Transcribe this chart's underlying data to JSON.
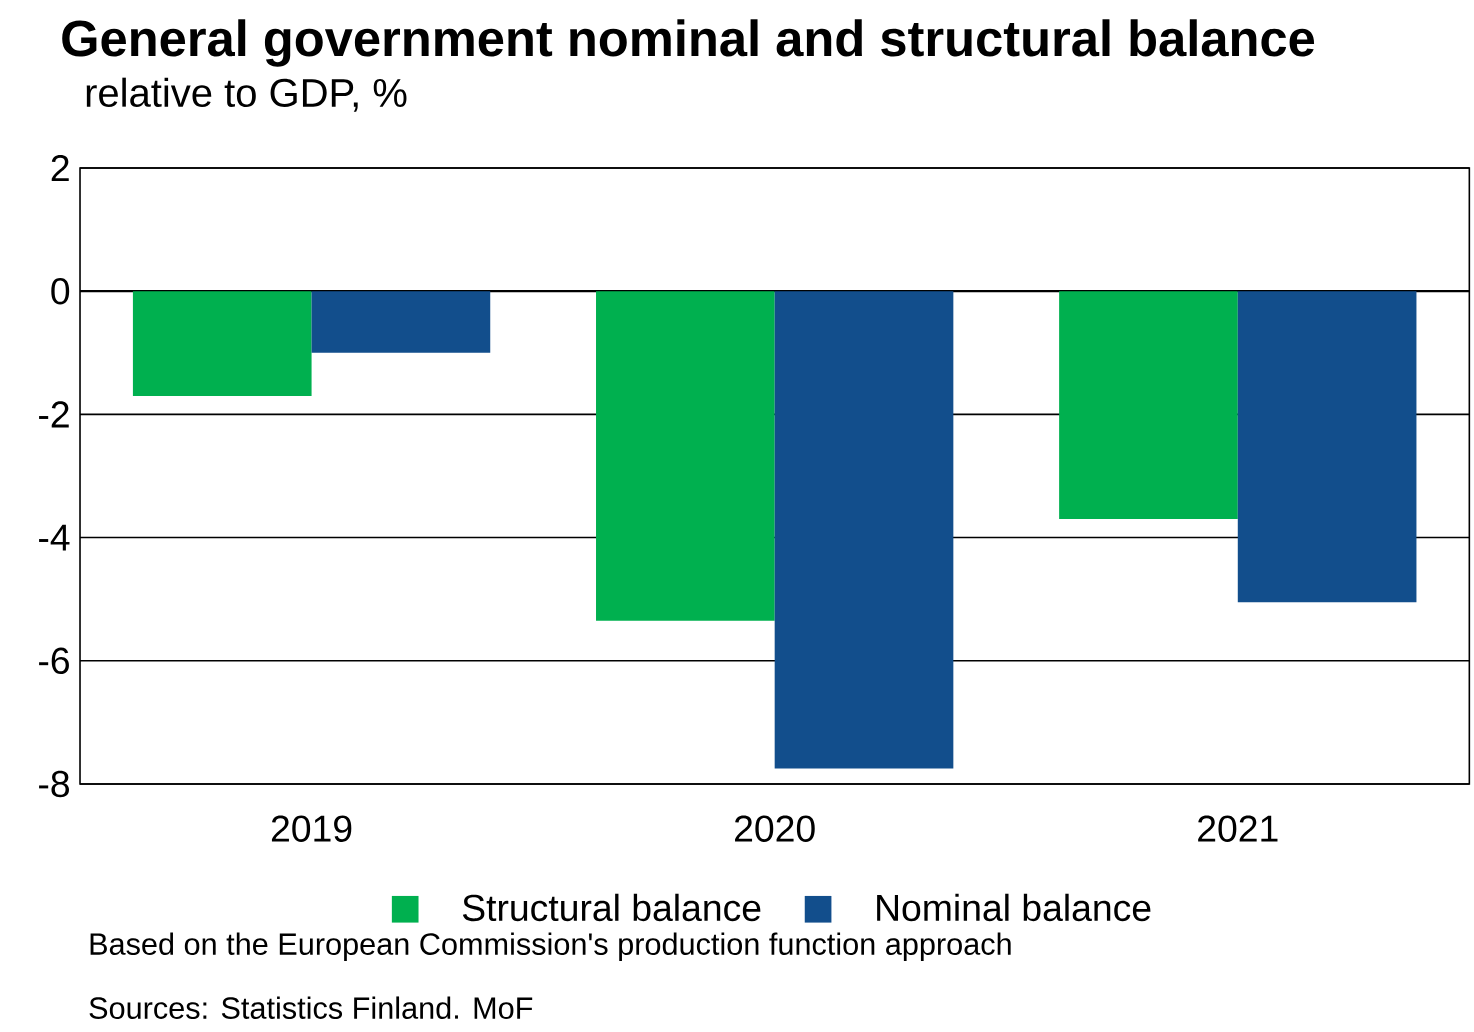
{
  "chart_data": {
    "type": "bar",
    "title": "General government nominal and structural balance",
    "subtitle": "relative to GDP, %",
    "categories": [
      "2019",
      "2020",
      "2021"
    ],
    "series": [
      {
        "name": "Structural balance",
        "color": "#00b04f",
        "values": [
          -1.7,
          -5.35,
          -3.7
        ]
      },
      {
        "name": "Nominal balance",
        "color": "#124e8c",
        "values": [
          -1.0,
          -7.75,
          -5.05
        ]
      }
    ],
    "ylim": [
      -8,
      2
    ],
    "yticks": [
      -8,
      -6,
      -4,
      -2,
      0,
      2
    ],
    "grid": "y",
    "legend": "bottom",
    "annotations": [
      "Based on the European Commission's production function approach",
      "Sources: Statistics Finland. MoF"
    ]
  }
}
